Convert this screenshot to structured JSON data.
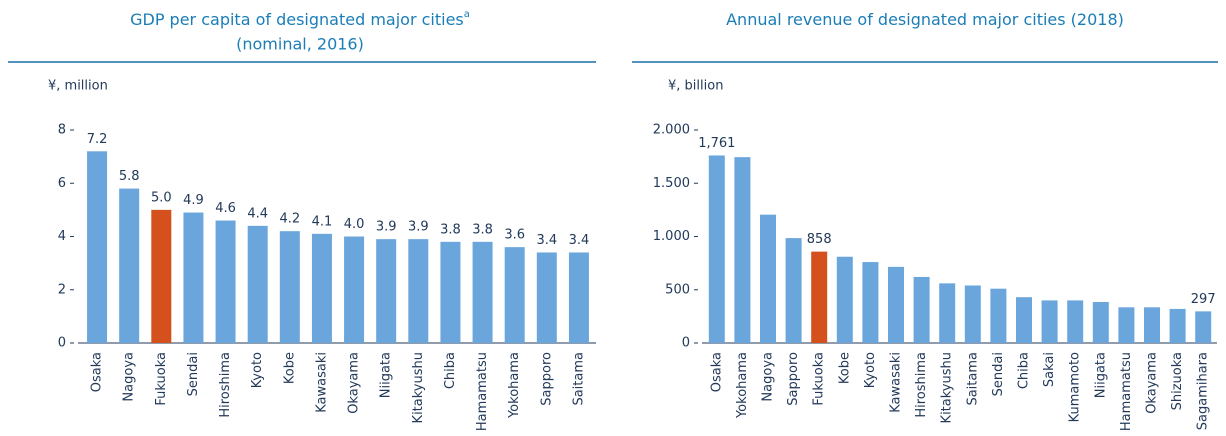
{
  "chart_data": [
    {
      "type": "bar",
      "title": "GDP per capita of designated major cities",
      "title_superscript": "a",
      "subtitle": "(nominal, 2016)",
      "y_label": "¥, million",
      "categories": [
        "Osaka",
        "Nagoya",
        "Fukuoka",
        "Sendai",
        "Hiroshima",
        "Kyoto",
        "Kobe",
        "Kawasaki",
        "Okayama",
        "Niigata",
        "Kitakyushu",
        "Chiba",
        "Hamamatsu",
        "Yokohama",
        "Sapporo",
        "Saitama"
      ],
      "values": [
        7.2,
        5.8,
        5.0,
        4.9,
        4.6,
        4.4,
        4.2,
        4.1,
        4.0,
        3.9,
        3.9,
        3.8,
        3.8,
        3.6,
        3.4,
        3.4
      ],
      "value_labels": [
        "7.2",
        "5.8",
        "5.0",
        "4.9",
        "4.6",
        "4.4",
        "4.2",
        "4.1",
        "4.0",
        "3.9",
        "3.9",
        "3.8",
        "3.8",
        "3.6",
        "3.4",
        "3.4"
      ],
      "color": "#6aa6dc",
      "colors": [
        "#6aa6dc",
        "#6aa6dc",
        "#d4501c",
        "#6aa6dc",
        "#6aa6dc",
        "#6aa6dc",
        "#6aa6dc",
        "#6aa6dc",
        "#6aa6dc",
        "#6aa6dc",
        "#6aa6dc",
        "#6aa6dc",
        "#6aa6dc",
        "#6aa6dc",
        "#6aa6dc",
        "#6aa6dc"
      ],
      "ylim": [
        0,
        8
      ],
      "yticks": [
        0,
        2,
        4,
        6,
        8
      ]
    },
    {
      "type": "bar",
      "title": "Annual revenue of designated major cities (2018)",
      "y_label": "¥, billion",
      "categories": [
        "Osaka",
        "Yokohama",
        "Nagoya",
        "Sapporo",
        "Fukuoka",
        "Kobe",
        "Kyoto",
        "Kawasaki",
        "Hiroshima",
        "Kitakyushu",
        "Saitama",
        "Sendai",
        "Chiba",
        "Sakai",
        "Kumamoto",
        "Niigata",
        "Hamamatsu",
        "Okayama",
        "Shizuoka",
        "Sagamihara"
      ],
      "values": [
        1761,
        1745,
        1205,
        985,
        858,
        810,
        760,
        715,
        620,
        560,
        540,
        510,
        430,
        400,
        400,
        385,
        335,
        335,
        320,
        297
      ],
      "value_labels": [
        "1,761",
        null,
        null,
        null,
        "858",
        null,
        null,
        null,
        null,
        null,
        null,
        null,
        null,
        null,
        null,
        null,
        null,
        null,
        null,
        "297"
      ],
      "color": "#6aa6dc",
      "colors": [
        "#6aa6dc",
        "#6aa6dc",
        "#6aa6dc",
        "#6aa6dc",
        "#d4501c",
        "#6aa6dc",
        "#6aa6dc",
        "#6aa6dc",
        "#6aa6dc",
        "#6aa6dc",
        "#6aa6dc",
        "#6aa6dc",
        "#6aa6dc",
        "#6aa6dc",
        "#6aa6dc",
        "#6aa6dc",
        "#6aa6dc",
        "#6aa6dc",
        "#6aa6dc",
        "#6aa6dc"
      ],
      "ylim": [
        0,
        2000
      ],
      "yticks": [
        0,
        500,
        {
          "value": 1000,
          "label": "1.000"
        },
        {
          "value": 1500,
          "label": "1.500"
        },
        {
          "value": 2000,
          "label": "2.000"
        }
      ]
    }
  ]
}
